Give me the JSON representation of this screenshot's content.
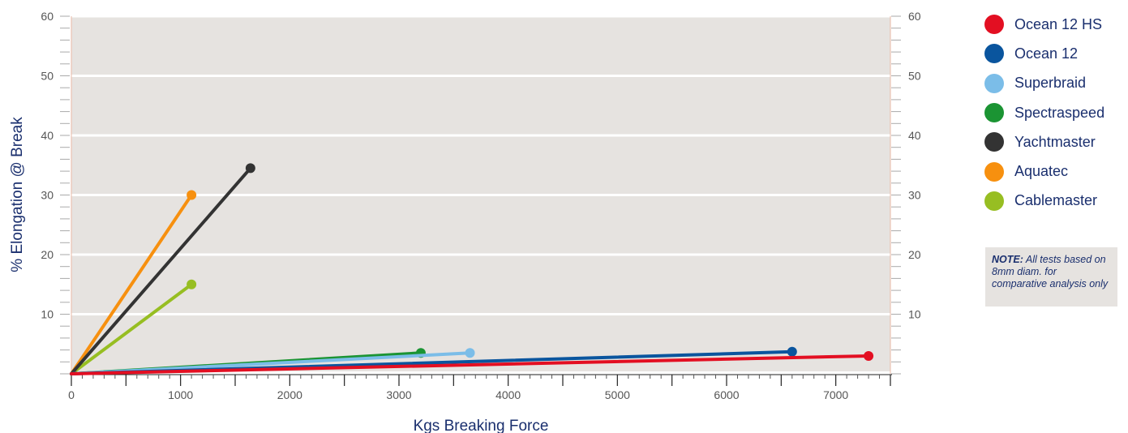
{
  "chart_data": {
    "type": "line",
    "xlabel": "Kgs Breaking Force",
    "ylabel": "% Elongation @ Break",
    "xlim": [
      0,
      7500
    ],
    "ylim": [
      0,
      60
    ],
    "x_ticks": [
      "0",
      "1000",
      "2000",
      "3000",
      "4000",
      "5000",
      "6000",
      "7000"
    ],
    "y_ticks": [
      "10",
      "20",
      "30",
      "40",
      "50",
      "60"
    ],
    "grid": "horizontal",
    "legend_position": "right",
    "series": [
      {
        "name": "Ocean 12 HS",
        "color": "#e30f22",
        "points": [
          [
            0,
            0
          ],
          [
            7300,
            3
          ]
        ]
      },
      {
        "name": "Ocean 12",
        "color": "#0a559e",
        "points": [
          [
            0,
            0
          ],
          [
            6600,
            3.7
          ]
        ]
      },
      {
        "name": "Superbraid",
        "color": "#7bbde8",
        "points": [
          [
            0,
            0
          ],
          [
            3650,
            3.5
          ]
        ]
      },
      {
        "name": "Spectraspeed",
        "color": "#1b9433",
        "points": [
          [
            0,
            0
          ],
          [
            3200,
            3.5
          ]
        ]
      },
      {
        "name": "Yachtmaster",
        "color": "#333333",
        "points": [
          [
            0,
            0
          ],
          [
            1640,
            34.5
          ]
        ]
      },
      {
        "name": "Aquatec",
        "color": "#f7900f",
        "points": [
          [
            0,
            0
          ],
          [
            1100,
            30
          ]
        ]
      },
      {
        "name": "Cablemaster",
        "color": "#97be22",
        "points": [
          [
            0,
            0
          ],
          [
            1100,
            15
          ]
        ]
      }
    ]
  },
  "note": {
    "label": "NOTE:",
    "text": "All tests based on 8mm diam. for comparative analysis only"
  }
}
